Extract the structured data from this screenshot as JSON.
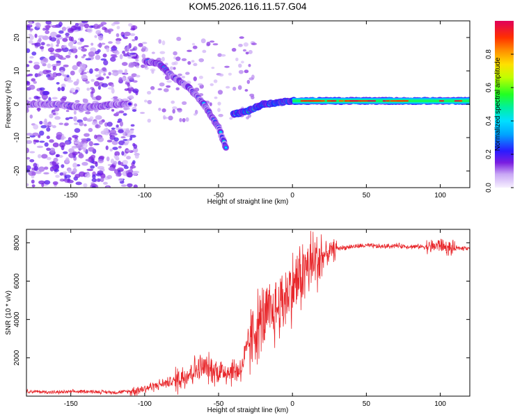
{
  "title": "KOM5.2026.116.11.57.G04",
  "colors": {
    "snr_line": "#e8262a",
    "spectrogram_low": "#f3ecff",
    "spectrogram_mid": "#7a1de0",
    "spectrogram_high": "#e0005a"
  },
  "chart_data": [
    {
      "type": "heatmap",
      "name": "spectrogram",
      "xlabel": "Height of straight line (km)",
      "ylabel": "Frequency (Hz)",
      "xlim": [
        -180,
        120
      ],
      "ylim": [
        -25,
        25
      ],
      "xticks": [
        -150,
        -100,
        -50,
        0,
        50,
        100
      ],
      "yticks": [
        -20,
        -10,
        0,
        10,
        20
      ],
      "xtick_labels": [
        "-150",
        "-100",
        "-50",
        "0",
        "50",
        "100"
      ],
      "ytick_labels": [
        "-20",
        "-10",
        "0",
        "10",
        "20"
      ],
      "colorbar": {
        "label": "Normalized spectral amplitude",
        "range": [
          0.0,
          1.0
        ],
        "ticks": [
          0.0,
          0.2,
          0.4,
          0.6,
          0.8
        ],
        "tick_labels": [
          "0.0",
          "0.2",
          "0.4",
          "0.6",
          "0.8"
        ]
      },
      "ridges": [
        {
          "name": "carrier-line",
          "x": [
            -40,
            -30,
            -20,
            -10,
            0,
            10,
            20,
            40,
            60,
            80,
            100,
            120
          ],
          "freq": [
            -3,
            -2,
            0,
            0.5,
            1,
            1,
            1,
            1,
            1,
            1,
            1,
            1
          ],
          "amplitude": 0.7
        },
        {
          "name": "zero-line-left",
          "x": [
            -180,
            -160,
            -140,
            -120,
            -110
          ],
          "freq": [
            0,
            0,
            -1,
            0,
            0
          ],
          "amplitude": 0.35
        },
        {
          "name": "descending-arc",
          "x": [
            -100,
            -90,
            -80,
            -70,
            -60,
            -50,
            -45
          ],
          "freq": [
            13,
            12,
            8,
            5,
            0,
            -7,
            -13
          ],
          "amplitude": 0.4
        }
      ]
    },
    {
      "type": "line",
      "name": "snr",
      "xlabel": "Height of straight line (km)",
      "ylabel": "SNR (10 * v/v)",
      "xlim": [
        -180,
        120
      ],
      "ylim": [
        0,
        8700
      ],
      "xticks": [
        -150,
        -100,
        -50,
        0,
        50,
        100
      ],
      "yticks": [
        2000,
        4000,
        6000,
        8000
      ],
      "xtick_labels": [
        "-150",
        "-100",
        "-50",
        "0",
        "50",
        "100"
      ],
      "ytick_labels": [
        "2000",
        "4000",
        "6000",
        "8000"
      ],
      "series": [
        {
          "name": "SNR",
          "x": [
            -180,
            -160,
            -140,
            -120,
            -110,
            -100,
            -90,
            -80,
            -75,
            -70,
            -65,
            -60,
            -55,
            -50,
            -45,
            -40,
            -35,
            -30,
            -25,
            -20,
            -15,
            -10,
            -5,
            0,
            5,
            10,
            15,
            20,
            25,
            30,
            40,
            50,
            60,
            70,
            80,
            90,
            95,
            100,
            105,
            110,
            120
          ],
          "values": [
            250,
            200,
            250,
            200,
            250,
            400,
            600,
            800,
            1000,
            1200,
            1400,
            1500,
            1400,
            1300,
            1300,
            1300,
            1400,
            2600,
            3500,
            4000,
            4200,
            4600,
            5200,
            5700,
            6200,
            6700,
            7000,
            7300,
            7500,
            7700,
            7800,
            7850,
            7800,
            7850,
            7800,
            7800,
            7800,
            7900,
            7700,
            7700,
            7750
          ]
        }
      ]
    }
  ]
}
